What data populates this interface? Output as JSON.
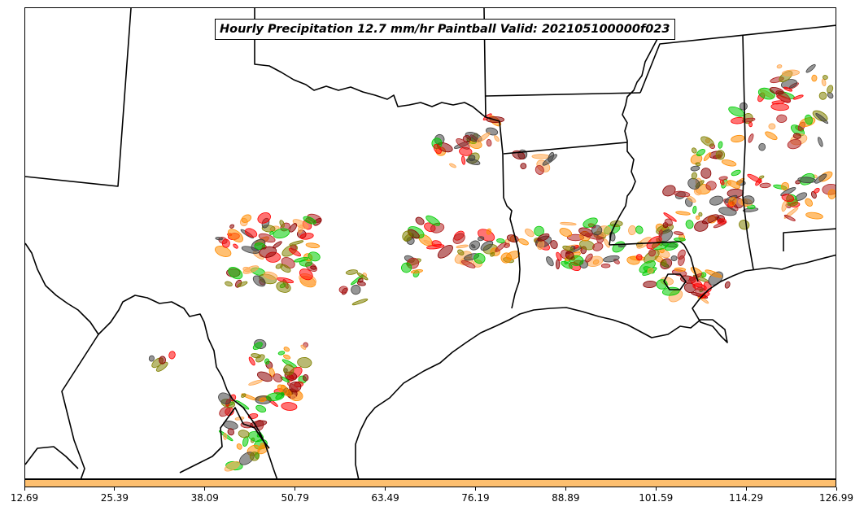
{
  "title": "Hourly Precipitation 12.7 mm/hr Paintball Valid: 202105100000f023",
  "colorbar": {
    "color": "#fdbf6f",
    "ticks": [
      "12.69",
      "25.39",
      "38.09",
      "50.79",
      "63.49",
      "76.19",
      "88.89",
      "101.59",
      "114.29",
      "126.99"
    ]
  },
  "paintball_colors": [
    "#8b0000",
    "#ff0000",
    "#ff8c00",
    "#ffa64d",
    "#808000",
    "#00cc00",
    "#404040",
    "#b22222"
  ],
  "colors": {
    "boundary": "#000000",
    "background": "#ffffff"
  }
}
